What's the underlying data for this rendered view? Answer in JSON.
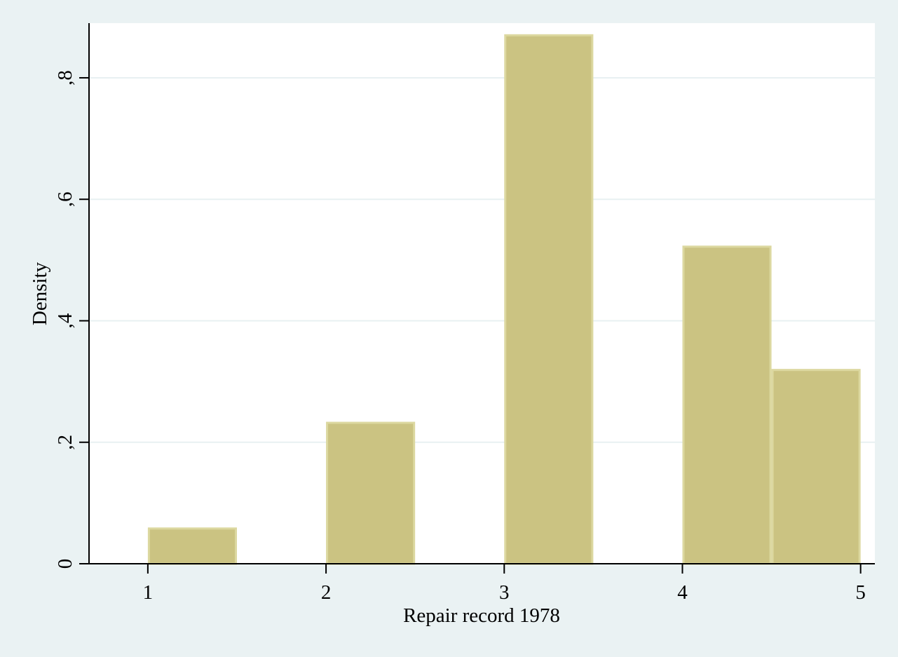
{
  "chart_data": {
    "type": "bar",
    "subtype": "histogram",
    "title": "",
    "xlabel": "Repair record 1978",
    "ylabel": "Density",
    "xlim": [
      0.67,
      5.08
    ],
    "ylim": [
      0,
      0.89
    ],
    "x_ticks": [
      {
        "value": 1,
        "label": "1"
      },
      {
        "value": 2,
        "label": "2"
      },
      {
        "value": 3,
        "label": "3"
      },
      {
        "value": 4,
        "label": "4"
      },
      {
        "value": 5,
        "label": "5"
      }
    ],
    "y_ticks": [
      {
        "value": 0,
        "label": "0"
      },
      {
        "value": 0.2,
        "label": ",2"
      },
      {
        "value": 0.4,
        "label": ",4"
      },
      {
        "value": 0.6,
        "label": ",6"
      },
      {
        "value": 0.8,
        "label": ",8"
      }
    ],
    "bins": [
      {
        "start": 1.0,
        "end": 1.5,
        "value": 0.058
      },
      {
        "start": 1.5,
        "end": 2.0,
        "value": 0
      },
      {
        "start": 2.0,
        "end": 2.5,
        "value": 0.232
      },
      {
        "start": 2.5,
        "end": 3.0,
        "value": 0
      },
      {
        "start": 3.0,
        "end": 3.5,
        "value": 0.87
      },
      {
        "start": 3.5,
        "end": 4.0,
        "value": 0
      },
      {
        "start": 4.0,
        "end": 4.5,
        "value": 0.522
      },
      {
        "start": 4.5,
        "end": 5.0,
        "value": 0.319
      }
    ],
    "grid": true,
    "legend": "none",
    "colors": {
      "background": "#eaf2f3",
      "plot_background": "#ffffff",
      "bar_fill": "#cbc382",
      "bar_edge": "#dcd8a0",
      "grid": "#e8f0f2",
      "axis": "#000000"
    }
  }
}
